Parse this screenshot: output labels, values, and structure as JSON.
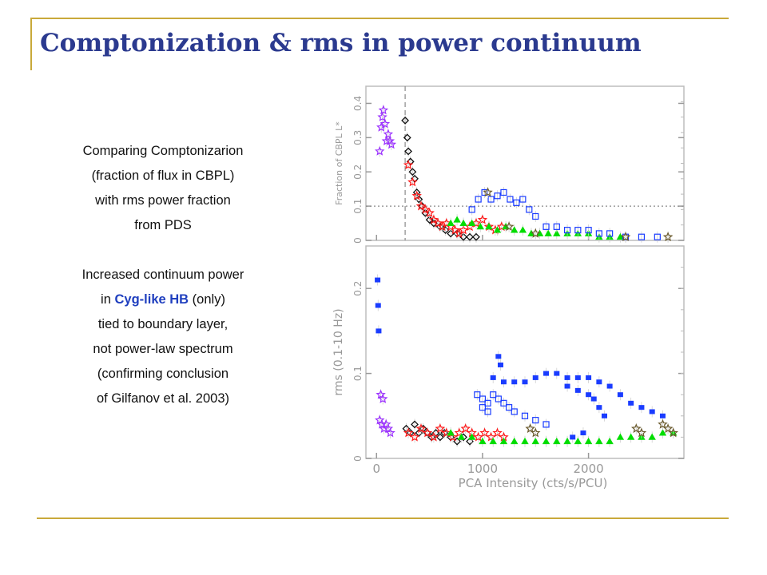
{
  "slide": {
    "title": "Comptonization & rms in power continuum",
    "colors": {
      "title": "#2b3a8f",
      "accent_rule": "#c9a93a",
      "highlight": "#1f3fbf"
    }
  },
  "text": {
    "para1": [
      "Comparing Comptonizarion",
      "(fraction of flux in CBPL)",
      "with rms power fraction",
      "from PDS"
    ],
    "para2": {
      "line1": "Increased continuum power",
      "line2_pre": "in ",
      "line2_highlight": "Cyg-like HB",
      "line2_post": " (only)",
      "line3": "tied to boundary layer,",
      "line4": "not power-law spectrum",
      "line5": "(confirming conclusion",
      "line6": "of Gilfanov et al. 2003)"
    }
  },
  "chart_data": [
    {
      "type": "scatter",
      "ylabel": "Fraction of CBPL L*",
      "xlim": [
        -100,
        2900
      ],
      "ylim": [
        0,
        0.45
      ],
      "yticks": [
        "0",
        "0.1",
        "0.2",
        "0.3",
        "0.4"
      ],
      "reference_lines": {
        "horizontal_dotted_y": 0.1,
        "vertical_dashed_x": 270
      },
      "series": [
        {
          "color": "#9b30ff",
          "marker": "star",
          "points": [
            [
              30,
              0.26
            ],
            [
              45,
              0.33
            ],
            [
              55,
              0.36
            ],
            [
              65,
              0.38
            ],
            [
              80,
              0.34
            ],
            [
              95,
              0.29
            ],
            [
              110,
              0.31
            ],
            [
              125,
              0.29
            ],
            [
              140,
              0.28
            ]
          ]
        },
        {
          "color": "#111111",
          "marker": "diamond",
          "points": [
            [
              270,
              0.35
            ],
            [
              290,
              0.3
            ],
            [
              300,
              0.26
            ],
            [
              320,
              0.23
            ],
            [
              340,
              0.2
            ],
            [
              360,
              0.18
            ],
            [
              380,
              0.14
            ],
            [
              400,
              0.12
            ],
            [
              430,
              0.1
            ],
            [
              460,
              0.08
            ],
            [
              500,
              0.06
            ],
            [
              540,
              0.05
            ],
            [
              600,
              0.04
            ],
            [
              650,
              0.03
            ],
            [
              700,
              0.02
            ],
            [
              760,
              0.02
            ],
            [
              820,
              0.01
            ],
            [
              880,
              0.01
            ],
            [
              940,
              0.01
            ]
          ]
        },
        {
          "color": "#ff1a1a",
          "marker": "star",
          "points": [
            [
              300,
              0.22
            ],
            [
              340,
              0.17
            ],
            [
              380,
              0.13
            ],
            [
              420,
              0.1
            ],
            [
              460,
              0.09
            ],
            [
              500,
              0.08
            ],
            [
              540,
              0.06
            ],
            [
              580,
              0.05
            ],
            [
              620,
              0.04
            ],
            [
              660,
              0.05
            ],
            [
              700,
              0.04
            ],
            [
              740,
              0.03
            ],
            [
              780,
              0.02
            ],
            [
              820,
              0.03
            ],
            [
              880,
              0.04
            ],
            [
              940,
              0.05
            ],
            [
              1000,
              0.06
            ],
            [
              1060,
              0.04
            ],
            [
              1120,
              0.03
            ],
            [
              1180,
              0.04
            ]
          ]
        },
        {
          "color": "#00dd00",
          "marker": "triangle",
          "points": [
            [
              700,
              0.05
            ],
            [
              760,
              0.06
            ],
            [
              820,
              0.05
            ],
            [
              900,
              0.05
            ],
            [
              980,
              0.04
            ],
            [
              1060,
              0.04
            ],
            [
              1140,
              0.03
            ],
            [
              1220,
              0.04
            ],
            [
              1300,
              0.03
            ],
            [
              1380,
              0.03
            ],
            [
              1460,
              0.02
            ],
            [
              1540,
              0.02
            ],
            [
              1620,
              0.02
            ],
            [
              1700,
              0.02
            ],
            [
              1800,
              0.02
            ],
            [
              1900,
              0.02
            ],
            [
              2000,
              0.02
            ],
            [
              2100,
              0.01
            ],
            [
              2200,
              0.01
            ],
            [
              2300,
              0.01
            ]
          ]
        },
        {
          "color": "#1a3cff",
          "marker": "open-square",
          "points": [
            [
              900,
              0.09
            ],
            [
              960,
              0.12
            ],
            [
              1020,
              0.14
            ],
            [
              1080,
              0.12
            ],
            [
              1140,
              0.13
            ],
            [
              1200,
              0.14
            ],
            [
              1260,
              0.12
            ],
            [
              1320,
              0.11
            ],
            [
              1380,
              0.12
            ],
            [
              1440,
              0.09
            ],
            [
              1500,
              0.07
            ],
            [
              1600,
              0.04
            ],
            [
              1700,
              0.04
            ],
            [
              1800,
              0.03
            ],
            [
              1900,
              0.03
            ],
            [
              2000,
              0.03
            ],
            [
              2100,
              0.02
            ],
            [
              2200,
              0.02
            ],
            [
              2350,
              0.01
            ],
            [
              2500,
              0.01
            ],
            [
              2650,
              0.01
            ]
          ]
        },
        {
          "color": "#6b5b2e",
          "marker": "star",
          "points": [
            [
              1050,
              0.14
            ],
            [
              1250,
              0.04
            ],
            [
              1500,
              0.02
            ],
            [
              2350,
              0.01
            ],
            [
              2750,
              0.01
            ]
          ]
        }
      ]
    },
    {
      "type": "scatter",
      "ylabel": "rms (0.1-10 Hz)",
      "xlabel": "PCA Intensity (cts/s/PCU)",
      "xlim": [
        -100,
        2900
      ],
      "ylim": [
        0,
        0.25
      ],
      "xticks": [
        "0",
        "1000",
        "2000"
      ],
      "yticks": [
        "0",
        "0.1",
        "0.2"
      ],
      "series": [
        {
          "color": "#1a3cff",
          "marker": "filled-square",
          "points": [
            [
              10,
              0.21
            ],
            [
              15,
              0.18
            ],
            [
              20,
              0.15
            ],
            [
              1150,
              0.12
            ],
            [
              1170,
              0.11
            ],
            [
              1100,
              0.095
            ],
            [
              1200,
              0.09
            ],
            [
              1300,
              0.09
            ],
            [
              1400,
              0.09
            ],
            [
              1500,
              0.095
            ],
            [
              1600,
              0.1
            ],
            [
              1700,
              0.1
            ],
            [
              1800,
              0.095
            ],
            [
              1900,
              0.095
            ],
            [
              2000,
              0.095
            ],
            [
              2100,
              0.09
            ],
            [
              2200,
              0.085
            ],
            [
              2300,
              0.075
            ],
            [
              2400,
              0.065
            ],
            [
              2500,
              0.06
            ],
            [
              2600,
              0.055
            ],
            [
              2700,
              0.05
            ],
            [
              1800,
              0.085
            ],
            [
              1900,
              0.08
            ],
            [
              2000,
              0.075
            ],
            [
              2050,
              0.07
            ],
            [
              2100,
              0.06
            ],
            [
              2150,
              0.05
            ],
            [
              1950,
              0.03
            ],
            [
              1850,
              0.025
            ]
          ]
        },
        {
          "color": "#1a3cff",
          "marker": "open-square",
          "points": [
            [
              950,
              0.075
            ],
            [
              1000,
              0.07
            ],
            [
              1050,
              0.065
            ],
            [
              1100,
              0.075
            ],
            [
              1150,
              0.07
            ],
            [
              1200,
              0.065
            ],
            [
              1250,
              0.06
            ],
            [
              1300,
              0.055
            ],
            [
              1400,
              0.05
            ],
            [
              1500,
              0.045
            ],
            [
              1600,
              0.04
            ],
            [
              1000,
              0.06
            ],
            [
              1050,
              0.055
            ]
          ]
        },
        {
          "color": "#9b30ff",
          "marker": "star",
          "points": [
            [
              40,
              0.075
            ],
            [
              60,
              0.07
            ],
            [
              30,
              0.045
            ],
            [
              50,
              0.04
            ],
            [
              70,
              0.035
            ],
            [
              90,
              0.04
            ],
            [
              110,
              0.035
            ],
            [
              130,
              0.03
            ]
          ]
        },
        {
          "color": "#111111",
          "marker": "diamond",
          "points": [
            [
              280,
              0.035
            ],
            [
              320,
              0.03
            ],
            [
              360,
              0.04
            ],
            [
              400,
              0.03
            ],
            [
              440,
              0.035
            ],
            [
              480,
              0.03
            ],
            [
              520,
              0.025
            ],
            [
              560,
              0.03
            ],
            [
              600,
              0.025
            ],
            [
              640,
              0.03
            ],
            [
              700,
              0.025
            ],
            [
              760,
              0.02
            ],
            [
              820,
              0.025
            ],
            [
              880,
              0.02
            ]
          ]
        },
        {
          "color": "#ff1a1a",
          "marker": "star",
          "points": [
            [
              300,
              0.03
            ],
            [
              360,
              0.025
            ],
            [
              420,
              0.035
            ],
            [
              480,
              0.03
            ],
            [
              540,
              0.025
            ],
            [
              600,
              0.035
            ],
            [
              660,
              0.03
            ],
            [
              720,
              0.025
            ],
            [
              780,
              0.03
            ],
            [
              840,
              0.035
            ],
            [
              900,
              0.03
            ],
            [
              960,
              0.025
            ],
            [
              1020,
              0.03
            ],
            [
              1080,
              0.025
            ],
            [
              1140,
              0.03
            ],
            [
              1200,
              0.025
            ]
          ]
        },
        {
          "color": "#00dd00",
          "marker": "triangle",
          "points": [
            [
              700,
              0.03
            ],
            [
              800,
              0.025
            ],
            [
              900,
              0.025
            ],
            [
              1000,
              0.02
            ],
            [
              1100,
              0.02
            ],
            [
              1200,
              0.02
            ],
            [
              1300,
              0.02
            ],
            [
              1400,
              0.02
            ],
            [
              1500,
              0.02
            ],
            [
              1600,
              0.02
            ],
            [
              1700,
              0.02
            ],
            [
              1800,
              0.02
            ],
            [
              1900,
              0.02
            ],
            [
              2000,
              0.02
            ],
            [
              2100,
              0.02
            ],
            [
              2200,
              0.02
            ],
            [
              2300,
              0.025
            ],
            [
              2400,
              0.025
            ],
            [
              2500,
              0.025
            ],
            [
              2600,
              0.025
            ],
            [
              2700,
              0.03
            ],
            [
              2800,
              0.03
            ]
          ]
        },
        {
          "color": "#6b5b2e",
          "marker": "star",
          "points": [
            [
              1450,
              0.035
            ],
            [
              1500,
              0.03
            ],
            [
              2450,
              0.035
            ],
            [
              2500,
              0.03
            ],
            [
              2700,
              0.04
            ],
            [
              2750,
              0.035
            ],
            [
              2800,
              0.03
            ]
          ]
        }
      ]
    }
  ]
}
